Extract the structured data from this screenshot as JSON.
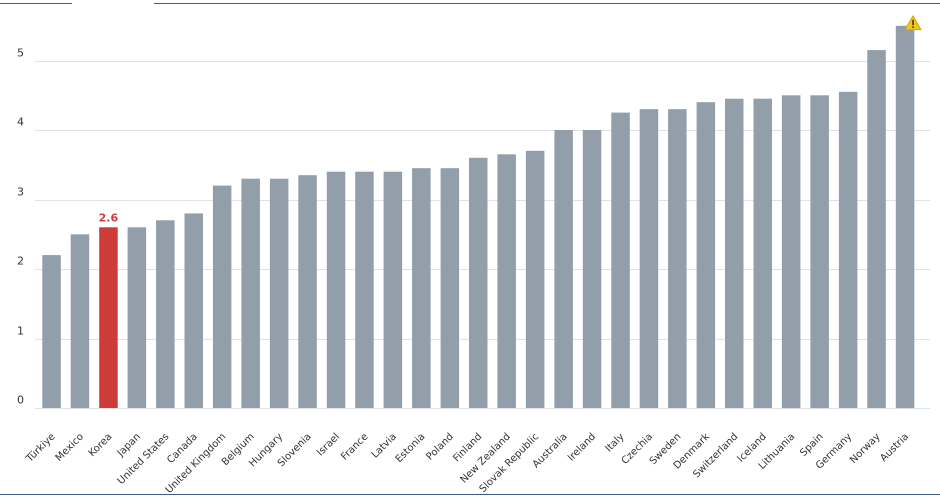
{
  "chart_data": {
    "type": "bar",
    "categories": [
      "Türkiye",
      "Mexico",
      "Korea",
      "Japan",
      "United States",
      "Canada",
      "United Kingdom",
      "Belgium",
      "Hungary",
      "Slovenia",
      "Israel",
      "France",
      "Latvia",
      "Estonia",
      "Poland",
      "Finland",
      "New Zealand",
      "Slovak Republic",
      "Australia",
      "Ireland",
      "Italy",
      "Czechia",
      "Sweden",
      "Denmark",
      "Switzerland",
      "Iceland",
      "Lithuania",
      "Spain",
      "Germany",
      "Norway",
      "Austria"
    ],
    "values": [
      2.2,
      2.5,
      2.6,
      2.6,
      2.7,
      2.8,
      3.2,
      3.3,
      3.3,
      3.35,
      3.4,
      3.4,
      3.4,
      3.45,
      3.45,
      3.6,
      3.65,
      3.7,
      4.0,
      4.0,
      4.25,
      4.3,
      4.3,
      4.4,
      4.45,
      4.45,
      4.5,
      4.5,
      4.55,
      5.15,
      5.5
    ],
    "highlight": {
      "category": "Korea",
      "label": "2.6"
    },
    "warning_marker": {
      "category": "Austria",
      "icon": "warning-icon"
    },
    "yticks": [
      0,
      1,
      2,
      3,
      4,
      5
    ],
    "ylim": [
      0,
      5.5
    ],
    "grid": true,
    "legend": "none",
    "colors": {
      "bar": "#929ea9",
      "highlight": "#cd3c36",
      "grid": "#dde3ea",
      "axis": "#3d5c83",
      "warning": "#f3c419"
    }
  }
}
